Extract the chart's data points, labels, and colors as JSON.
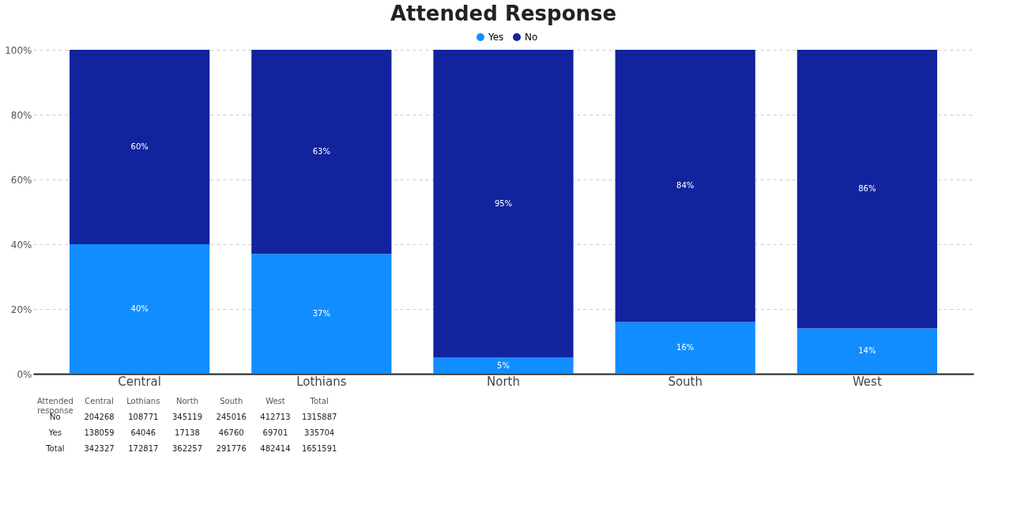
{
  "chart_data": [
    {
      "type": "bar",
      "title": "Attended Response",
      "categories": [
        "Central",
        "Lothians",
        "North",
        "South",
        "West"
      ],
      "stacked": true,
      "legend": "top",
      "grid": "y",
      "series": [
        {
          "name": "Yes",
          "color": "#118dff",
          "values": [
            40,
            37,
            5,
            16,
            14
          ],
          "value_labels": [
            "40%",
            "37%",
            "5%",
            "16%",
            "14%"
          ]
        },
        {
          "name": "No",
          "color": "#12239e",
          "values": [
            60,
            63,
            95,
            84,
            86
          ],
          "value_labels": [
            "60%",
            "63%",
            "95%",
            "84%",
            "86%"
          ]
        }
      ],
      "ylim": [
        0,
        100
      ],
      "yticks": [
        {
          "value": 0,
          "label": "0%"
        },
        {
          "value": 20,
          "label": "20%"
        },
        {
          "value": 40,
          "label": "40%"
        },
        {
          "value": 60,
          "label": "60%"
        },
        {
          "value": 80,
          "label": "80%"
        },
        {
          "value": 100,
          "label": "100%"
        }
      ]
    },
    {
      "type": "other",
      "annotations": [
        "Attended response",
        "Central",
        "Lothians",
        "North",
        "South",
        "West",
        "Total",
        "No",
        "204268",
        "108771",
        "345119",
        "245016",
        "412713",
        "1315887",
        "Yes",
        "138059",
        "64046",
        "17138",
        "46760",
        "69701",
        "335704",
        "Total",
        "342327",
        "172817",
        "362257",
        "291776",
        "482414",
        "1651591"
      ]
    }
  ]
}
